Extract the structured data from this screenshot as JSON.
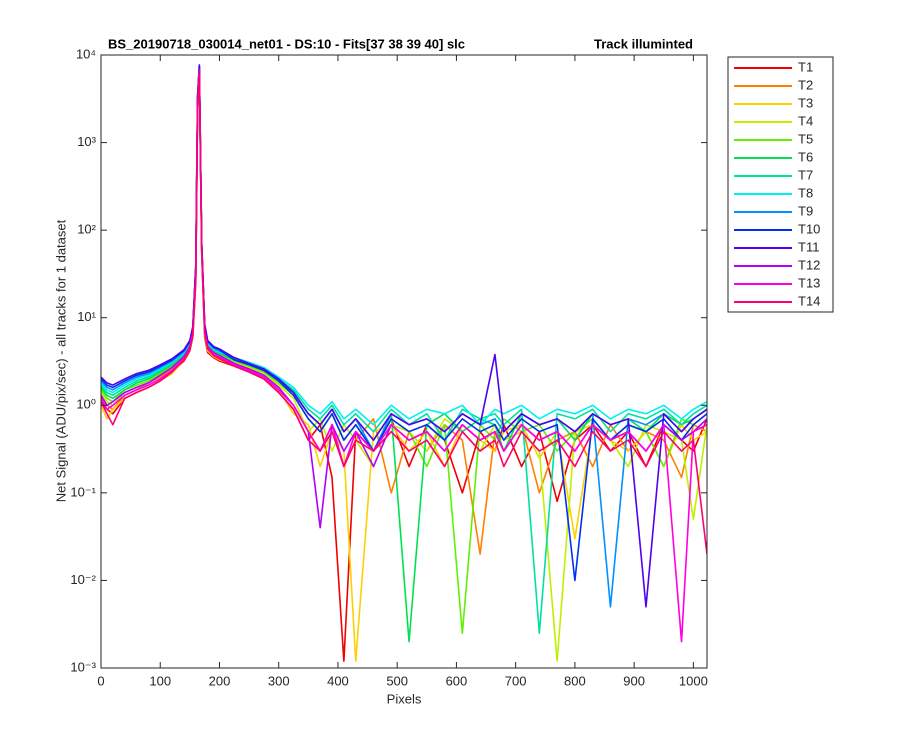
{
  "chart_data": {
    "type": "line",
    "title": "BS_20190718_030014_net01 - DS:10 - Fits[37  38  39  40]   slc",
    "title_right": "Track illuminted",
    "x_label": "Pixels",
    "y_label": "Net Signal (ADU/pix/sec) - all tracks for 1 dataset",
    "log_y": true,
    "grid": false,
    "legend_position": "outside-top-right",
    "xlim": [
      0,
      1023
    ],
    "ylim": [
      0.001,
      10000
    ],
    "xticks": [
      0,
      100,
      200,
      300,
      400,
      500,
      600,
      700,
      800,
      900,
      1000
    ],
    "yticks": [
      {
        "value": 0.001,
        "label": "10⁻³"
      },
      {
        "value": 0.01,
        "label": "10⁻²"
      },
      {
        "value": 0.1,
        "label": "10⁻¹"
      },
      {
        "value": 1,
        "label": "10⁰"
      },
      {
        "value": 10,
        "label": "10¹"
      },
      {
        "value": 100,
        "label": "10²"
      },
      {
        "value": 1000,
        "label": "10³"
      },
      {
        "value": 10000,
        "label": "10⁴"
      }
    ],
    "x": [
      0,
      10,
      20,
      40,
      60,
      80,
      100,
      120,
      140,
      150,
      155,
      160,
      163,
      166,
      170,
      175,
      180,
      190,
      200,
      225,
      250,
      275,
      300,
      325,
      350,
      370,
      390,
      410,
      430,
      460,
      490,
      520,
      550,
      580,
      610,
      640,
      665,
      680,
      710,
      740,
      770,
      800,
      830,
      860,
      890,
      920,
      950,
      980,
      1000,
      1023
    ],
    "series": [
      {
        "name": "T1",
        "color": "#f00000",
        "values": [
          1.1,
          0.9,
          0.8,
          1.2,
          1.4,
          1.6,
          1.9,
          2.4,
          3.2,
          4.2,
          6,
          25,
          2200,
          6000,
          55,
          6,
          4,
          3.5,
          3.2,
          2.8,
          2.4,
          2,
          1.4,
          0.9,
          0.4,
          0.6,
          0.15,
          0.0012,
          0.5,
          0.3,
          0.7,
          0.2,
          0.6,
          0.4,
          0.1,
          0.5,
          0.3,
          0.6,
          0.2,
          0.5,
          0.08,
          0.4,
          0.6,
          0.3,
          0.5,
          0.2,
          0.6,
          0.4,
          0.3,
          0.7
        ]
      },
      {
        "name": "T2",
        "color": "#ff8000",
        "values": [
          1.3,
          1.0,
          0.9,
          1.3,
          1.5,
          1.8,
          2.1,
          2.6,
          3.5,
          4.6,
          6.8,
          32,
          2600,
          6800,
          62,
          7,
          4.6,
          3.9,
          3.6,
          3.0,
          2.5,
          2.1,
          1.5,
          1.0,
          0.5,
          0.3,
          0.6,
          0.2,
          0.4,
          0.7,
          0.1,
          0.5,
          0.3,
          0.6,
          0.4,
          0.02,
          0.5,
          0.3,
          0.6,
          0.1,
          0.4,
          0.5,
          0.2,
          0.6,
          0.3,
          0.5,
          0.4,
          0.15,
          0.6,
          0.5
        ]
      },
      {
        "name": "T3",
        "color": "#ffd000",
        "values": [
          1.0,
          0.7,
          0.9,
          1.2,
          1.4,
          1.6,
          1.9,
          2.3,
          3.3,
          4.4,
          6.2,
          28,
          2400,
          6300,
          58,
          6.5,
          4.2,
          3.6,
          3.3,
          2.9,
          2.5,
          2.1,
          1.5,
          0.8,
          0.6,
          0.2,
          0.5,
          0.3,
          0.0012,
          0.5,
          0.6,
          0.3,
          0.5,
          0.2,
          0.6,
          0.4,
          0.3,
          0.5,
          0.6,
          0.25,
          0.5,
          0.03,
          0.6,
          0.4,
          0.3,
          0.5,
          0.2,
          0.6,
          0.4,
          0.5
        ]
      },
      {
        "name": "T4",
        "color": "#c0f000",
        "values": [
          1.4,
          1.1,
          1.0,
          1.4,
          1.6,
          1.8,
          2.2,
          2.7,
          3.6,
          4.8,
          7,
          33,
          2700,
          7000,
          65,
          7.5,
          4.8,
          4.0,
          3.7,
          3.1,
          2.7,
          2.3,
          1.7,
          1.2,
          0.5,
          0.7,
          0.3,
          0.6,
          0.4,
          0.2,
          0.6,
          0.5,
          0.3,
          0.7,
          0.5,
          0.3,
          0.6,
          0.4,
          0.5,
          0.3,
          0.0012,
          0.5,
          0.6,
          0.4,
          0.2,
          0.6,
          0.5,
          0.4,
          0.05,
          0.6
        ]
      },
      {
        "name": "T5",
        "color": "#60f000",
        "values": [
          1.5,
          1.2,
          1.1,
          1.5,
          1.7,
          1.9,
          2.3,
          2.8,
          3.7,
          4.9,
          7.2,
          34,
          2800,
          7100,
          66,
          7.6,
          4.9,
          4.1,
          3.8,
          3.2,
          2.8,
          2.4,
          1.8,
          1.3,
          0.7,
          0.5,
          0.8,
          0.4,
          0.6,
          0.3,
          0.7,
          0.5,
          0.2,
          0.6,
          0.0025,
          0.6,
          0.4,
          0.7,
          0.5,
          0.6,
          0.3,
          0.5,
          0.7,
          0.4,
          0.6,
          0.5,
          0.2,
          0.7,
          0.6,
          0.8
        ]
      },
      {
        "name": "T6",
        "color": "#00e050",
        "values": [
          1.6,
          1.3,
          1.2,
          1.5,
          1.8,
          2.0,
          2.4,
          2.9,
          3.8,
          5.0,
          7.4,
          35,
          2900,
          7200,
          67,
          7.8,
          5.0,
          4.2,
          3.9,
          3.3,
          2.9,
          2.5,
          1.9,
          1.4,
          0.8,
          0.6,
          0.9,
          0.5,
          0.7,
          0.4,
          0.8,
          0.002,
          0.6,
          0.8,
          0.5,
          0.7,
          0.6,
          0.3,
          0.8,
          0.6,
          0.7,
          0.4,
          0.8,
          0.6,
          0.7,
          0.5,
          0.8,
          0.6,
          0.7,
          0.9
        ]
      },
      {
        "name": "T7",
        "color": "#00e0a0",
        "values": [
          1.7,
          1.4,
          1.3,
          1.6,
          1.9,
          2.1,
          2.5,
          3.0,
          3.9,
          5.1,
          7.5,
          36,
          3000,
          7300,
          68,
          8,
          5.1,
          4.3,
          4.0,
          3.4,
          3.0,
          2.6,
          2.0,
          1.5,
          0.9,
          0.7,
          1.0,
          0.6,
          0.8,
          0.5,
          0.9,
          0.6,
          0.8,
          0.4,
          0.9,
          0.7,
          0.8,
          0.6,
          0.9,
          0.0025,
          0.8,
          0.7,
          0.9,
          0.5,
          0.8,
          0.7,
          0.9,
          0.6,
          0.8,
          1.0
        ]
      },
      {
        "name": "T8",
        "color": "#00f0f0",
        "values": [
          1.8,
          1.5,
          1.4,
          1.7,
          2.0,
          2.2,
          2.6,
          3.1,
          4.0,
          5.2,
          7.6,
          37,
          3100,
          7400,
          69,
          8.2,
          5.2,
          4.4,
          4.1,
          3.5,
          3.1,
          2.7,
          2.1,
          1.6,
          1.0,
          0.8,
          1.1,
          0.7,
          0.9,
          0.6,
          1.0,
          0.7,
          0.9,
          0.8,
          1.0,
          0.6,
          0.9,
          0.8,
          1.0,
          0.7,
          0.9,
          0.8,
          1.0,
          0.7,
          0.9,
          0.8,
          1.0,
          0.7,
          0.9,
          1.1
        ]
      },
      {
        "name": "T9",
        "color": "#0090ff",
        "values": [
          1.9,
          1.6,
          1.5,
          1.8,
          2.1,
          2.3,
          2.7,
          3.2,
          4.1,
          5.3,
          7.7,
          38,
          3200,
          7500,
          70,
          8.3,
          5.3,
          4.5,
          4.2,
          3.4,
          3.0,
          2.6,
          2.0,
          1.4,
          0.8,
          0.6,
          0.9,
          0.5,
          0.7,
          0.3,
          0.8,
          0.6,
          0.7,
          0.5,
          0.8,
          0.6,
          0.7,
          0.5,
          0.8,
          0.6,
          0.7,
          0.5,
          0.8,
          0.005,
          0.7,
          0.6,
          0.8,
          0.5,
          0.7,
          0.9
        ]
      },
      {
        "name": "T10",
        "color": "#0030f0",
        "values": [
          2.0,
          1.7,
          1.6,
          1.9,
          2.2,
          2.4,
          2.8,
          3.3,
          4.2,
          5.4,
          7.8,
          39,
          3300,
          7600,
          71,
          8.4,
          5.4,
          4.6,
          4.3,
          3.3,
          2.9,
          2.5,
          1.9,
          1.3,
          0.7,
          0.5,
          0.8,
          0.4,
          0.6,
          0.3,
          0.7,
          0.5,
          0.6,
          0.4,
          0.7,
          0.5,
          0.6,
          0.4,
          0.7,
          0.5,
          0.6,
          0.01,
          0.7,
          0.4,
          0.6,
          0.5,
          0.7,
          0.4,
          0.6,
          0.8
        ]
      },
      {
        "name": "T11",
        "color": "#5000f0",
        "values": [
          2.1,
          1.8,
          1.7,
          2.0,
          2.3,
          2.5,
          2.9,
          3.4,
          4.3,
          5.5,
          7.9,
          40,
          3400,
          7700,
          72,
          8.5,
          5.5,
          4.7,
          4.4,
          3.5,
          3.0,
          2.6,
          2.0,
          1.4,
          0.8,
          0.6,
          0.9,
          0.5,
          0.7,
          0.4,
          0.8,
          0.6,
          0.7,
          0.5,
          0.8,
          0.6,
          3.8,
          0.5,
          0.8,
          0.6,
          0.7,
          0.5,
          0.8,
          0.6,
          0.7,
          0.005,
          0.8,
          0.5,
          0.7,
          0.9
        ]
      },
      {
        "name": "T12",
        "color": "#b000ff",
        "values": [
          1.3,
          1.0,
          1.1,
          1.4,
          1.6,
          1.8,
          2.2,
          2.7,
          3.6,
          4.7,
          6.9,
          31,
          2650,
          6900,
          63,
          7.2,
          4.7,
          4.0,
          3.7,
          3.0,
          2.6,
          2.2,
          1.6,
          1.0,
          0.5,
          0.04,
          0.6,
          0.3,
          0.5,
          0.2,
          0.6,
          0.4,
          0.5,
          0.3,
          0.6,
          0.4,
          0.5,
          0.3,
          0.6,
          0.4,
          0.5,
          0.3,
          0.6,
          0.4,
          0.5,
          0.3,
          0.6,
          0.4,
          0.5,
          0.7
        ]
      },
      {
        "name": "T13",
        "color": "#ff00e0",
        "values": [
          1.2,
          0.9,
          1.0,
          1.3,
          1.5,
          1.7,
          2.0,
          2.5,
          3.4,
          4.5,
          6.5,
          30,
          2500,
          6500,
          60,
          7,
          4.5,
          3.8,
          3.5,
          2.9,
          2.5,
          2.1,
          1.5,
          1.0,
          0.5,
          0.3,
          0.6,
          0.2,
          0.5,
          0.3,
          0.6,
          0.4,
          0.5,
          0.3,
          0.6,
          0.4,
          0.5,
          0.3,
          0.6,
          0.4,
          0.5,
          0.3,
          0.6,
          0.4,
          0.5,
          0.3,
          0.6,
          0.002,
          0.5,
          0.6
        ]
      },
      {
        "name": "T14",
        "color": "#ff0070",
        "values": [
          1.1,
          0.8,
          0.6,
          1.2,
          1.4,
          1.6,
          1.9,
          2.4,
          3.3,
          4.4,
          6.3,
          29,
          2450,
          6400,
          59,
          6.8,
          4.4,
          3.7,
          3.4,
          2.8,
          2.4,
          2.0,
          1.4,
          0.9,
          0.4,
          0.3,
          0.5,
          0.2,
          0.4,
          0.3,
          0.5,
          0.3,
          0.4,
          0.2,
          0.5,
          0.3,
          0.4,
          0.2,
          0.5,
          0.3,
          0.4,
          0.2,
          0.5,
          0.3,
          0.4,
          0.2,
          0.5,
          0.3,
          0.4,
          0.02
        ]
      }
    ]
  }
}
